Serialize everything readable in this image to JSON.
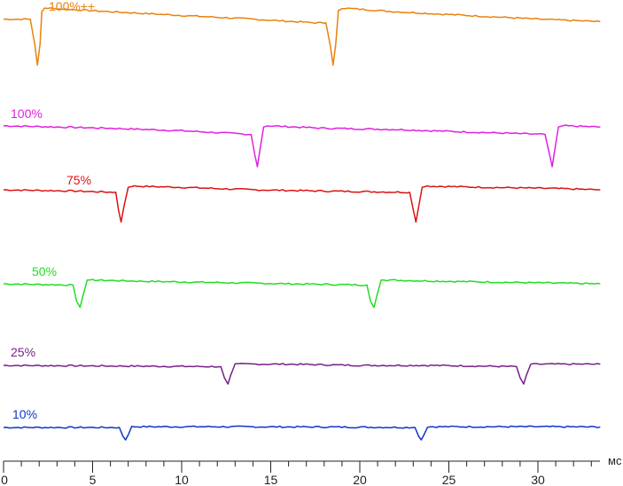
{
  "chart_data": {
    "type": "line",
    "xlabel": "мс",
    "xlim": [
      0,
      33.5
    ],
    "x_ticks": [
      "0",
      "5",
      "10",
      "15",
      "20",
      "25",
      "30"
    ],
    "x_tick_values": [
      0,
      5,
      10,
      15,
      20,
      25,
      30
    ],
    "grid": false,
    "legend": "labels above each trace",
    "series": [
      {
        "name": "100%++",
        "color": "#e8820c",
        "points": [
          [
            0,
            0.3
          ],
          [
            1.5,
            0.3
          ],
          [
            1.75,
            -0.7
          ],
          [
            1.9,
            -1.55
          ],
          [
            2.05,
            -0.7
          ],
          [
            2.15,
            0.6
          ],
          [
            2.3,
            0.75
          ],
          [
            6,
            0.6
          ],
          [
            10,
            0.45
          ],
          [
            14,
            0.3
          ],
          [
            17.5,
            0.15
          ],
          [
            18.1,
            0.15
          ],
          [
            18.35,
            -0.8
          ],
          [
            18.5,
            -1.55
          ],
          [
            18.65,
            -0.7
          ],
          [
            18.8,
            0.65
          ],
          [
            19,
            0.75
          ],
          [
            22,
            0.6
          ],
          [
            26,
            0.45
          ],
          [
            30,
            0.3
          ],
          [
            33.5,
            0.2
          ]
        ]
      },
      {
        "name": "100%",
        "color": "#e020e0",
        "points": [
          [
            0,
            0.15
          ],
          [
            6,
            0.05
          ],
          [
            10,
            -0.05
          ],
          [
            13.9,
            -0.2
          ],
          [
            14.1,
            -1.0
          ],
          [
            14.25,
            -1.5
          ],
          [
            14.4,
            -0.8
          ],
          [
            14.6,
            0.1
          ],
          [
            14.8,
            0.15
          ],
          [
            18,
            0.05
          ],
          [
            22,
            0
          ],
          [
            26,
            -0.1
          ],
          [
            30.4,
            -0.2
          ],
          [
            30.65,
            -1.0
          ],
          [
            30.8,
            -1.5
          ],
          [
            30.95,
            -0.8
          ],
          [
            31.15,
            0.1
          ],
          [
            31.4,
            0.15
          ],
          [
            33.5,
            0.1
          ]
        ]
      },
      {
        "name": "75%",
        "color": "#dd1111",
        "points": [
          [
            0,
            0
          ],
          [
            4,
            -0.05
          ],
          [
            6.3,
            -0.1
          ],
          [
            6.45,
            -0.8
          ],
          [
            6.6,
            -1.3
          ],
          [
            6.75,
            -0.7
          ],
          [
            7,
            0.1
          ],
          [
            7.2,
            0.15
          ],
          [
            10,
            0.1
          ],
          [
            14,
            0
          ],
          [
            18,
            -0.05
          ],
          [
            22.8,
            -0.1
          ],
          [
            23,
            -0.8
          ],
          [
            23.15,
            -1.3
          ],
          [
            23.3,
            -0.7
          ],
          [
            23.5,
            0.1
          ],
          [
            23.8,
            0.15
          ],
          [
            27,
            0.1
          ],
          [
            31,
            0.05
          ],
          [
            33.5,
            0
          ]
        ]
      },
      {
        "name": "50%",
        "color": "#22dd22",
        "points": [
          [
            0,
            0
          ],
          [
            3.9,
            -0.05
          ],
          [
            4.1,
            -0.7
          ],
          [
            4.3,
            -0.95
          ],
          [
            4.45,
            -0.5
          ],
          [
            4.7,
            0.15
          ],
          [
            5,
            0.15
          ],
          [
            8,
            0.1
          ],
          [
            12,
            0.05
          ],
          [
            16,
            0
          ],
          [
            20.4,
            -0.05
          ],
          [
            20.6,
            -0.7
          ],
          [
            20.8,
            -0.95
          ],
          [
            20.95,
            -0.5
          ],
          [
            21.2,
            0.15
          ],
          [
            21.5,
            0.15
          ],
          [
            25,
            0.1
          ],
          [
            29,
            0.05
          ],
          [
            33.5,
            0
          ]
        ]
      },
      {
        "name": "25%",
        "color": "#771f88",
        "points": [
          [
            0,
            0
          ],
          [
            12.2,
            -0.05
          ],
          [
            12.4,
            -0.5
          ],
          [
            12.6,
            -0.75
          ],
          [
            12.75,
            -0.4
          ],
          [
            13,
            0.05
          ],
          [
            16,
            0.05
          ],
          [
            20,
            0
          ],
          [
            24,
            0
          ],
          [
            28.8,
            -0.05
          ],
          [
            29,
            -0.5
          ],
          [
            29.2,
            -0.75
          ],
          [
            29.35,
            -0.4
          ],
          [
            29.6,
            0.05
          ],
          [
            33.5,
            0.05
          ]
        ]
      },
      {
        "name": "10%",
        "color": "#1133cc",
        "points": [
          [
            0,
            0
          ],
          [
            6.5,
            0
          ],
          [
            6.7,
            -0.35
          ],
          [
            6.85,
            -0.5
          ],
          [
            7,
            -0.3
          ],
          [
            7.2,
            0.03
          ],
          [
            12,
            0.03
          ],
          [
            18,
            0.02
          ],
          [
            23.1,
            0
          ],
          [
            23.3,
            -0.35
          ],
          [
            23.45,
            -0.5
          ],
          [
            23.6,
            -0.3
          ],
          [
            23.8,
            0.03
          ],
          [
            30,
            0.03
          ],
          [
            33.5,
            0.02
          ]
        ]
      }
    ]
  }
}
